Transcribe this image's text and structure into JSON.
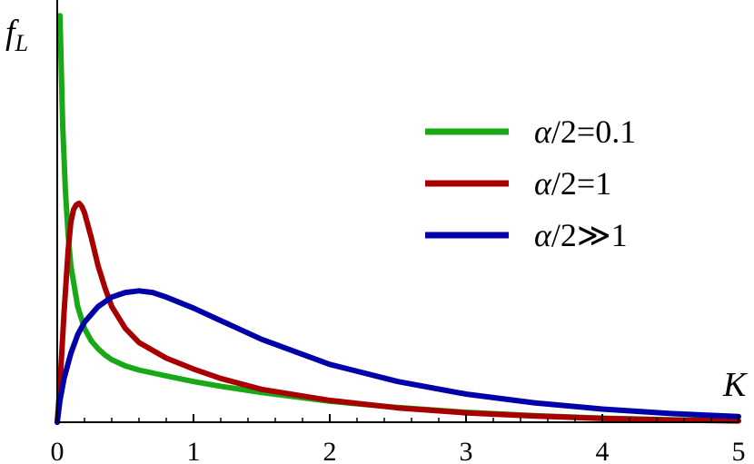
{
  "chart_data": {
    "type": "line",
    "xlabel": "K",
    "ylabel": "f",
    "ylabel_sub": "L",
    "xlim": [
      0,
      5
    ],
    "ylim": [
      0,
      1.35
    ],
    "xticks": [
      "0",
      "1",
      "2",
      "3",
      "4",
      "5"
    ],
    "legend_position": "top-right",
    "grid": false,
    "series": [
      {
        "name": "α/2=0.1",
        "color": "#19a916",
        "x": [
          0.02,
          0.04,
          0.06,
          0.08,
          0.1,
          0.15,
          0.2,
          0.25,
          0.3,
          0.35,
          0.4,
          0.5,
          0.6,
          0.8,
          1.0,
          1.2,
          1.5,
          2.0,
          2.5,
          3.0,
          3.5,
          4.0,
          4.5,
          5.0
        ],
        "y": [
          1.3,
          0.95,
          0.74,
          0.6,
          0.5,
          0.37,
          0.3,
          0.26,
          0.235,
          0.215,
          0.2,
          0.18,
          0.167,
          0.148,
          0.13,
          0.115,
          0.095,
          0.067,
          0.047,
          0.032,
          0.021,
          0.013,
          0.008,
          0.005
        ]
      },
      {
        "name": "α/2=1",
        "color": "#a80000",
        "x": [
          0.0,
          0.02,
          0.05,
          0.08,
          0.1,
          0.12,
          0.14,
          0.16,
          0.18,
          0.2,
          0.25,
          0.3,
          0.35,
          0.4,
          0.5,
          0.6,
          0.8,
          1.0,
          1.2,
          1.5,
          2.0,
          2.5,
          3.0,
          3.5,
          4.0,
          4.5,
          5.0
        ],
        "y": [
          0.0,
          0.12,
          0.35,
          0.55,
          0.64,
          0.68,
          0.695,
          0.7,
          0.69,
          0.67,
          0.59,
          0.5,
          0.43,
          0.37,
          0.3,
          0.255,
          0.205,
          0.17,
          0.14,
          0.105,
          0.07,
          0.046,
          0.03,
          0.02,
          0.012,
          0.007,
          0.004
        ]
      },
      {
        "name": "α/2≫1",
        "color": "#0000a8",
        "x": [
          0.0,
          0.02,
          0.05,
          0.1,
          0.15,
          0.2,
          0.3,
          0.4,
          0.5,
          0.6,
          0.7,
          0.8,
          1.0,
          1.2,
          1.5,
          2.0,
          2.5,
          3.0,
          3.5,
          4.0,
          4.5,
          5.0
        ],
        "y": [
          0.0,
          0.07,
          0.14,
          0.22,
          0.28,
          0.32,
          0.37,
          0.4,
          0.415,
          0.42,
          0.415,
          0.4,
          0.365,
          0.325,
          0.265,
          0.185,
          0.13,
          0.09,
          0.062,
          0.042,
          0.028,
          0.018
        ]
      }
    ]
  }
}
